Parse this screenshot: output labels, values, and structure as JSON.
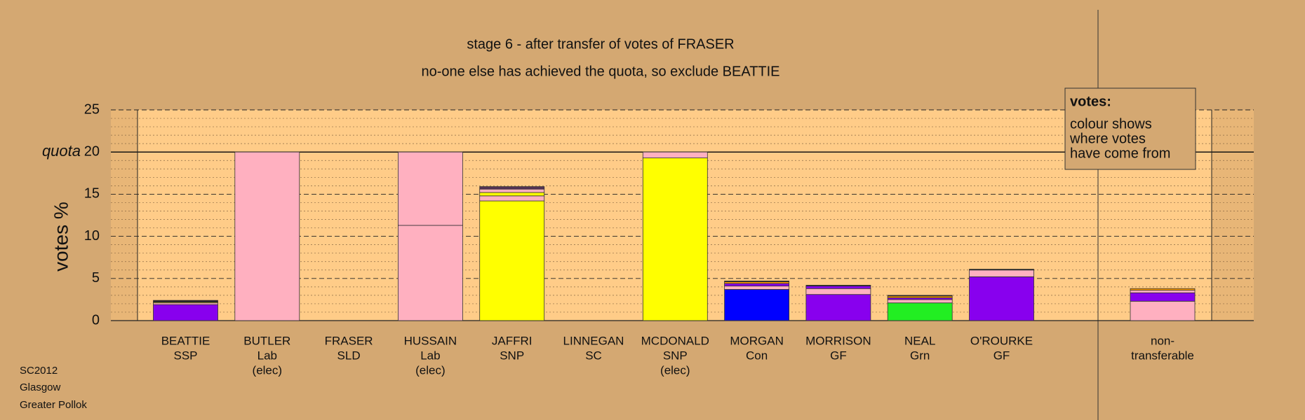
{
  "chart_data": {
    "type": "stacked_bar",
    "title": "stage 6 - after transfer of votes of FRASER",
    "subtitle": "no-one else has achieved the quota, so exclude BEATTIE",
    "ylabel": "votes %",
    "categories": [
      [
        "BEATTIE",
        "SSP"
      ],
      [
        "BUTLER",
        "Lab",
        "(elec)"
      ],
      [
        "FRASER",
        "SLD"
      ],
      [
        "HUSSAIN",
        "Lab",
        "(elec)"
      ],
      [
        "JAFFRI",
        "SNP"
      ],
      [
        "LINNEGAN",
        "SC"
      ],
      [
        "MCDONALD",
        "SNP",
        "(elec)"
      ],
      [
        "MORGAN",
        "Con"
      ],
      [
        "MORRISON",
        "GF"
      ],
      [
        "NEAL",
        "Grn"
      ],
      [
        "O'ROURKE",
        "GF"
      ],
      [
        "non-",
        "transferable"
      ]
    ],
    "segments": [
      [
        1.9,
        0.2,
        0.1,
        0.2
      ],
      [
        20
      ],
      [],
      [
        11.3,
        8.7
      ],
      [
        14.2,
        0.6,
        0.4,
        0.4,
        0.3
      ],
      [],
      [
        19.3,
        0.7
      ],
      [
        3.7,
        0.4,
        0.3,
        0.2,
        0.1
      ],
      [
        3.1,
        0.7,
        0.3,
        0.1
      ],
      [
        2.1,
        0.4,
        0.2,
        0.2,
        0.1
      ],
      [
        5.2,
        0.8,
        0.1
      ],
      [
        2.3,
        1.0,
        0.3,
        0.2
      ]
    ],
    "segment_colors": [
      [
        "#8800ee",
        "#ffb0c0",
        "#ffff00",
        "#222222"
      ],
      [
        "#ffb0c0"
      ],
      [],
      [
        "#ffb0c0",
        "#ffb0c0"
      ],
      [
        "#ffff00",
        "#ffb0c0",
        "#ffff00",
        "#ffb0c0",
        "#553355"
      ],
      [],
      [
        "#ffff00",
        "#ffb0c0"
      ],
      [
        "#0000ff",
        "#ffb0c0",
        "#8800ee",
        "#ff9900",
        "#222222"
      ],
      [
        "#8800ee",
        "#ffb0c0",
        "#8800ee",
        "#222222"
      ],
      [
        "#22ee22",
        "#ffb0c0",
        "#8800ee",
        "#ff9900",
        "#222222"
      ],
      [
        "#8800ee",
        "#ffb0c0",
        "#222222"
      ],
      [
        "#ffb0c0",
        "#8800ee",
        "#ffb0c0",
        "#ff9900"
      ]
    ],
    "ylim": [
      0,
      25
    ],
    "yticks": [
      0,
      5,
      10,
      15,
      20,
      25
    ],
    "minor_grid_step": 1,
    "quota": {
      "value": 20,
      "label": "quota"
    },
    "legend": {
      "title": "votes:",
      "lines": [
        "colour shows",
        "where votes",
        "have come from"
      ]
    },
    "footer": [
      "SC2012",
      "Glasgow",
      "Greater Pollok"
    ]
  }
}
